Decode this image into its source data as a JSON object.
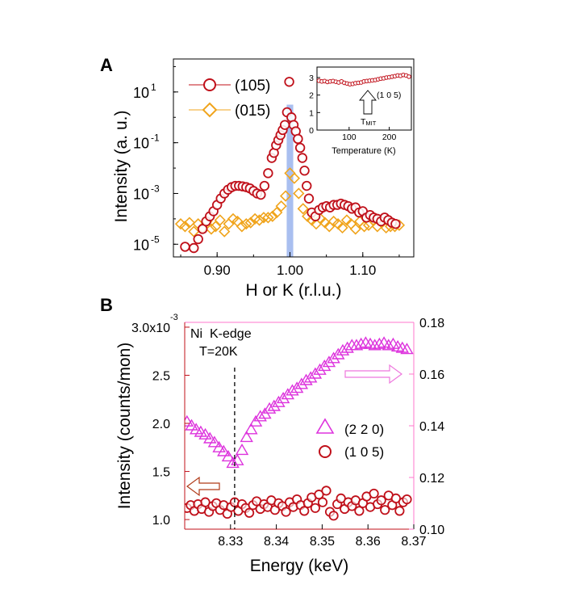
{
  "panels": {
    "a_label": "A",
    "b_label": "B"
  },
  "colors": {
    "red": "#c0101a",
    "orange": "#f0a41c",
    "magenta": "#dd33dd",
    "blue": "#a9bff0",
    "frame_b_left": "#c0101a",
    "frame_b_right": "#ff77cc"
  },
  "chart_data": [
    {
      "id": "A",
      "type": "scatter",
      "xlabel": "H or K (r.l.u.)",
      "ylabel": "Intensity (a. u.)",
      "yscale": "log",
      "xlim": [
        0.84,
        1.17
      ],
      "ylim_log10": [
        -5.5,
        2.3
      ],
      "xticks": [
        {
          "v": 0.9,
          "label": "0.90"
        },
        {
          "v": 1.0,
          "label": "1.00"
        },
        {
          "v": 1.1,
          "label": "1.10"
        }
      ],
      "yticks": [
        {
          "e": 1,
          "base": "10",
          "exp": "1"
        },
        {
          "e": -1,
          "base": "10",
          "exp": "-1"
        },
        {
          "e": -3,
          "base": "10",
          "exp": "-3"
        },
        {
          "e": -5,
          "base": "10",
          "exp": "-5"
        }
      ],
      "legend": [
        {
          "label": "(105)",
          "marker": "circle",
          "color": "#c0101a"
        },
        {
          "label": "(015)",
          "marker": "diamond",
          "color": "#f0a41c"
        }
      ],
      "resolution_band": {
        "center": 1.0,
        "half_width": 0.0045,
        "peak_log10": 0.5
      },
      "series": [
        {
          "name": "(105)",
          "x": [
            0.856,
            0.868,
            0.874,
            0.88,
            0.885,
            0.89,
            0.895,
            0.9,
            0.905,
            0.91,
            0.915,
            0.92,
            0.925,
            0.93,
            0.935,
            0.94,
            0.945,
            0.95,
            0.955,
            0.96,
            0.965,
            0.97,
            0.975,
            0.978,
            0.981,
            0.984,
            0.987,
            0.99,
            0.993,
            0.996,
            0.999,
            1.002,
            1.005,
            1.008,
            1.011,
            1.014,
            1.017,
            1.02,
            1.023,
            1.026,
            1.03,
            1.035,
            1.04,
            1.045,
            1.05,
            1.055,
            1.06,
            1.065,
            1.07,
            1.075,
            1.08,
            1.085,
            1.09,
            1.095,
            1.1,
            1.105,
            1.11,
            1.115,
            1.12,
            1.125,
            1.13,
            1.135,
            1.14,
            1.145
          ],
          "log10y": [
            -5.1,
            -5.15,
            -4.8,
            -4.4,
            -4.1,
            -3.9,
            -3.7,
            -3.45,
            -3.2,
            -3.0,
            -2.85,
            -2.75,
            -2.7,
            -2.7,
            -2.72,
            -2.75,
            -2.8,
            -2.9,
            -3.0,
            -3.05,
            -2.7,
            -2.2,
            -1.6,
            -1.4,
            -1.1,
            -0.9,
            -0.7,
            -0.5,
            -0.3,
            0.2,
            1.4,
            0.0,
            -0.3,
            -0.55,
            -0.85,
            -1.2,
            -1.6,
            -2.1,
            -2.7,
            -3.2,
            -3.75,
            -3.9,
            -3.65,
            -3.55,
            -3.5,
            -3.55,
            -3.45,
            -3.45,
            -3.4,
            -3.45,
            -3.5,
            -3.6,
            -3.55,
            -3.75,
            -3.7,
            -3.95,
            -3.85,
            -3.95,
            -4.0,
            -4.1,
            -3.95,
            -4.05,
            -4.15,
            -4.2
          ]
        },
        {
          "name": "(015)",
          "x": [
            0.85,
            0.856,
            0.862,
            0.868,
            0.874,
            0.88,
            0.886,
            0.892,
            0.898,
            0.904,
            0.91,
            0.916,
            0.922,
            0.928,
            0.934,
            0.94,
            0.946,
            0.952,
            0.958,
            0.964,
            0.97,
            0.976,
            0.982,
            0.988,
            0.994,
            1.0,
            1.006,
            1.012,
            1.018,
            1.024,
            1.03,
            1.036,
            1.042,
            1.048,
            1.054,
            1.06,
            1.066,
            1.072,
            1.078,
            1.084,
            1.09,
            1.096,
            1.102,
            1.108,
            1.114,
            1.12,
            1.126,
            1.132,
            1.138,
            1.144,
            1.15
          ],
          "log10y": [
            -4.2,
            -4.3,
            -4.15,
            -4.5,
            -4.2,
            -4.35,
            -4.1,
            -4.4,
            -4.3,
            -4.05,
            -4.5,
            -4.2,
            -4.0,
            -4.1,
            -4.3,
            -4.2,
            -4.15,
            -4.0,
            -4.05,
            -3.95,
            -3.95,
            -3.9,
            -3.75,
            -3.5,
            -3.1,
            -2.2,
            -2.4,
            -3.0,
            -3.6,
            -3.9,
            -4.05,
            -4.2,
            -4.0,
            -4.15,
            -4.3,
            -4.1,
            -4.2,
            -4.35,
            -4.05,
            -4.2,
            -4.4,
            -4.1,
            -4.3,
            -4.25,
            -4.05,
            -4.3,
            -4.15,
            -4.35,
            -4.3,
            -4.3,
            -4.25
          ]
        }
      ],
      "inset": {
        "xlabel": "Temperature (K)",
        "xlim": [
          20,
          255
        ],
        "ylim": [
          0,
          3.6
        ],
        "xticks": [
          {
            "v": 100,
            "label": "100"
          },
          {
            "v": 200,
            "label": "200"
          }
        ],
        "yticks": [
          {
            "v": 0,
            "label": "0"
          },
          {
            "v": 1,
            "label": "1"
          },
          {
            "v": 2,
            "label": "2"
          },
          {
            "v": 3,
            "label": "3"
          }
        ],
        "arrow_label": "(1 0 5)",
        "tmit_main": "T",
        "tmit_sub": "MIT",
        "tmit_temperature": 150,
        "x": [
          25,
          32,
          39,
          46,
          53,
          60,
          67,
          74,
          81,
          88,
          95,
          102,
          109,
          116,
          123,
          130,
          137,
          144,
          151,
          158,
          165,
          172,
          179,
          186,
          193,
          200,
          207,
          214,
          221,
          228,
          235,
          242,
          249
        ],
        "y": [
          2.82,
          2.78,
          2.8,
          2.75,
          2.78,
          2.8,
          2.76,
          2.72,
          2.78,
          2.7,
          2.66,
          2.62,
          2.64,
          2.68,
          2.7,
          2.72,
          2.78,
          2.8,
          2.82,
          2.84,
          2.86,
          2.9,
          2.94,
          2.96,
          3.0,
          3.02,
          3.05,
          3.08,
          3.12,
          3.1,
          3.15,
          3.12,
          3.05
        ]
      }
    },
    {
      "id": "B",
      "type": "scatter",
      "xlabel": "Energy (keV)",
      "ylabel": "Intensity (counts/mon)",
      "xlim": [
        8.32,
        8.37
      ],
      "ylim_left": [
        0.9,
        3.05
      ],
      "ylim_right": [
        0.1,
        0.18
      ],
      "xticks": [
        {
          "v": 8.33,
          "label": "8.33"
        },
        {
          "v": 8.34,
          "label": "8.34"
        },
        {
          "v": 8.35,
          "label": "8.35"
        },
        {
          "v": 8.36,
          "label": "8.36"
        },
        {
          "v": 8.37,
          "label": "8.37"
        }
      ],
      "yticks_left": [
        {
          "v": 1.0,
          "label": "1.0"
        },
        {
          "v": 1.5,
          "label": "1.5"
        },
        {
          "v": 2.0,
          "label": "2.0"
        },
        {
          "v": 2.5,
          "label": "2.5"
        },
        {
          "v": 3.0,
          "label": "3.0x10"
        }
      ],
      "left_top_exponent": "-3",
      "yticks_right": [
        {
          "v": 0.1,
          "label": "0.10"
        },
        {
          "v": 0.12,
          "label": "0.12"
        },
        {
          "v": 0.14,
          "label": "0.14"
        },
        {
          "v": 0.16,
          "label": "0.16"
        },
        {
          "v": 0.18,
          "label": "0.18"
        }
      ],
      "annotation_edge": "Ni  K-edge",
      "annotation_temp": "T=20K",
      "edge_energy": 8.3309,
      "legend": [
        {
          "label": "(2 2 0)",
          "marker": "triangle",
          "color": "#dd33dd",
          "axis": "right"
        },
        {
          "label": "(1 0 5)",
          "marker": "circle",
          "color": "#c0101a",
          "axis": "left"
        }
      ],
      "series": [
        {
          "name": "(2 2 0)",
          "axis": "right",
          "x": [
            8.3205,
            8.3215,
            8.3225,
            8.3235,
            8.3245,
            8.3255,
            8.3265,
            8.3275,
            8.3285,
            8.3295,
            8.3305,
            8.3315,
            8.3325,
            8.3335,
            8.3345,
            8.3355,
            8.3365,
            8.3375,
            8.3385,
            8.3395,
            8.3405,
            8.3415,
            8.3425,
            8.3435,
            8.3445,
            8.3455,
            8.3465,
            8.3475,
            8.3485,
            8.3495,
            8.3505,
            8.3515,
            8.3525,
            8.3535,
            8.3545,
            8.3555,
            8.3565,
            8.3575,
            8.3585,
            8.3595,
            8.3605,
            8.3615,
            8.3625,
            8.3635,
            8.3645,
            8.3655,
            8.3665,
            8.3675,
            8.3685
          ],
          "y": [
            0.1415,
            0.14,
            0.1385,
            0.1375,
            0.1365,
            0.135,
            0.1335,
            0.1315,
            0.13,
            0.128,
            0.1255,
            0.1265,
            0.1305,
            0.1355,
            0.1385,
            0.1415,
            0.1435,
            0.1445,
            0.1465,
            0.1475,
            0.149,
            0.1505,
            0.152,
            0.1535,
            0.1545,
            0.156,
            0.1575,
            0.1585,
            0.16,
            0.1615,
            0.163,
            0.1645,
            0.166,
            0.1675,
            0.169,
            0.17,
            0.171,
            0.171,
            0.1715,
            0.172,
            0.1715,
            0.171,
            0.1715,
            0.172,
            0.171,
            0.1715,
            0.1705,
            0.17,
            0.1695
          ]
        },
        {
          "name": "(1 0 5)",
          "axis": "left",
          "x": [
            8.3205,
            8.3213,
            8.3221,
            8.3229,
            8.3237,
            8.3245,
            8.3253,
            8.3261,
            8.3269,
            8.3277,
            8.3285,
            8.3293,
            8.3301,
            8.3309,
            8.3317,
            8.3325,
            8.3333,
            8.3341,
            8.3349,
            8.3357,
            8.3365,
            8.3373,
            8.3381,
            8.3389,
            8.3397,
            8.3405,
            8.3413,
            8.3421,
            8.3429,
            8.3437,
            8.3445,
            8.3453,
            8.3461,
            8.3469,
            8.3477,
            8.3485,
            8.3493,
            8.3501,
            8.3509,
            8.3517,
            8.3525,
            8.3533,
            8.3541,
            8.3549,
            8.3557,
            8.3565,
            8.3573,
            8.3581,
            8.3589,
            8.3597,
            8.3605,
            8.3613,
            8.3621,
            8.3629,
            8.3637,
            8.3645,
            8.3653,
            8.3661,
            8.3669,
            8.3677,
            8.3685
          ],
          "y": [
            1.12,
            1.15,
            1.09,
            1.16,
            1.11,
            1.18,
            1.08,
            1.14,
            1.17,
            1.1,
            1.15,
            1.06,
            1.13,
            1.18,
            1.09,
            1.16,
            1.12,
            1.07,
            1.15,
            1.19,
            1.11,
            1.16,
            1.13,
            1.2,
            1.1,
            1.17,
            1.14,
            1.08,
            1.18,
            1.13,
            1.21,
            1.15,
            1.09,
            1.17,
            1.23,
            1.12,
            1.26,
            1.18,
            1.3,
            1.08,
            1.04,
            1.16,
            1.22,
            1.11,
            1.18,
            1.14,
            1.2,
            1.09,
            1.17,
            1.24,
            1.13,
            1.27,
            1.16,
            1.2,
            1.1,
            1.25,
            1.15,
            1.22,
            1.09,
            1.18,
            1.21
          ]
        }
      ]
    }
  ]
}
